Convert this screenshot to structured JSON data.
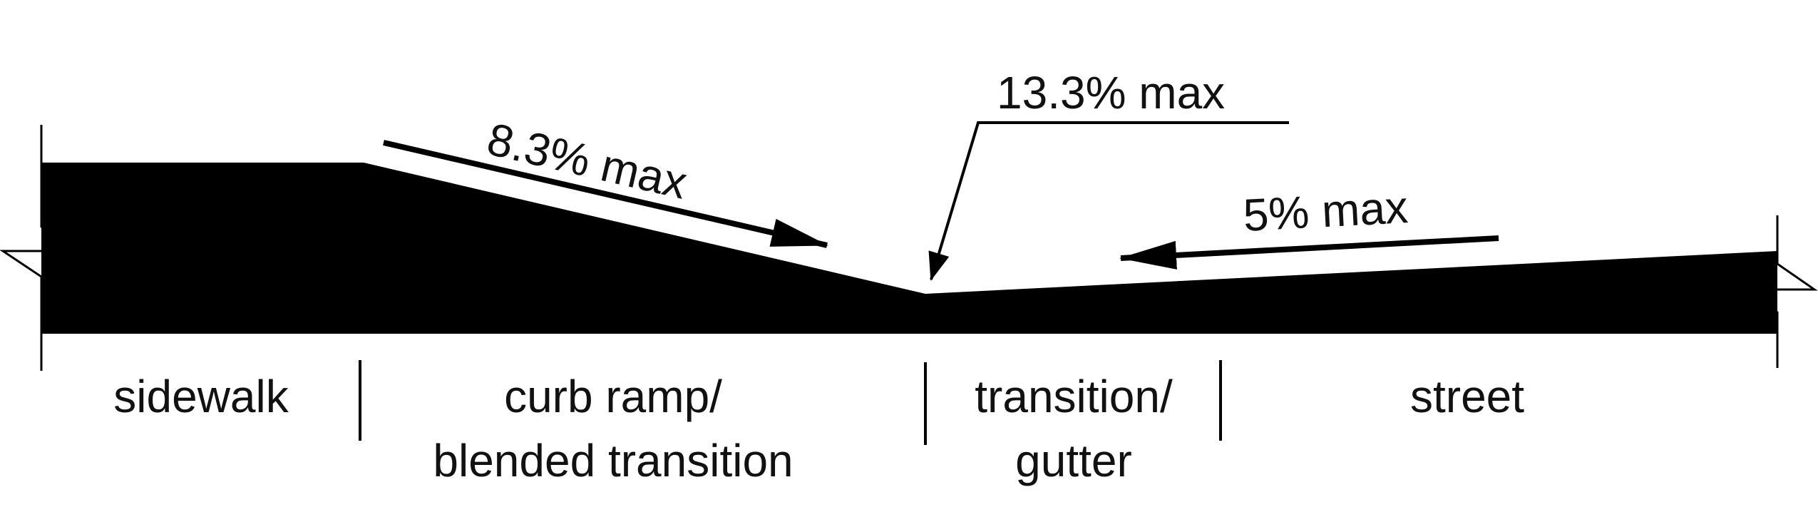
{
  "colors": {
    "profile": "#000000",
    "text": "#111111",
    "background": "#ffffff"
  },
  "slopes": {
    "ramp": "8.3% max",
    "transition": "13.3% max",
    "street": "5% max"
  },
  "zones": {
    "sidewalk": [
      "sidewalk"
    ],
    "curb_ramp": [
      "curb ramp/",
      "blended transition"
    ],
    "gutter": [
      "transition/",
      "gutter"
    ],
    "street": [
      "street"
    ]
  }
}
